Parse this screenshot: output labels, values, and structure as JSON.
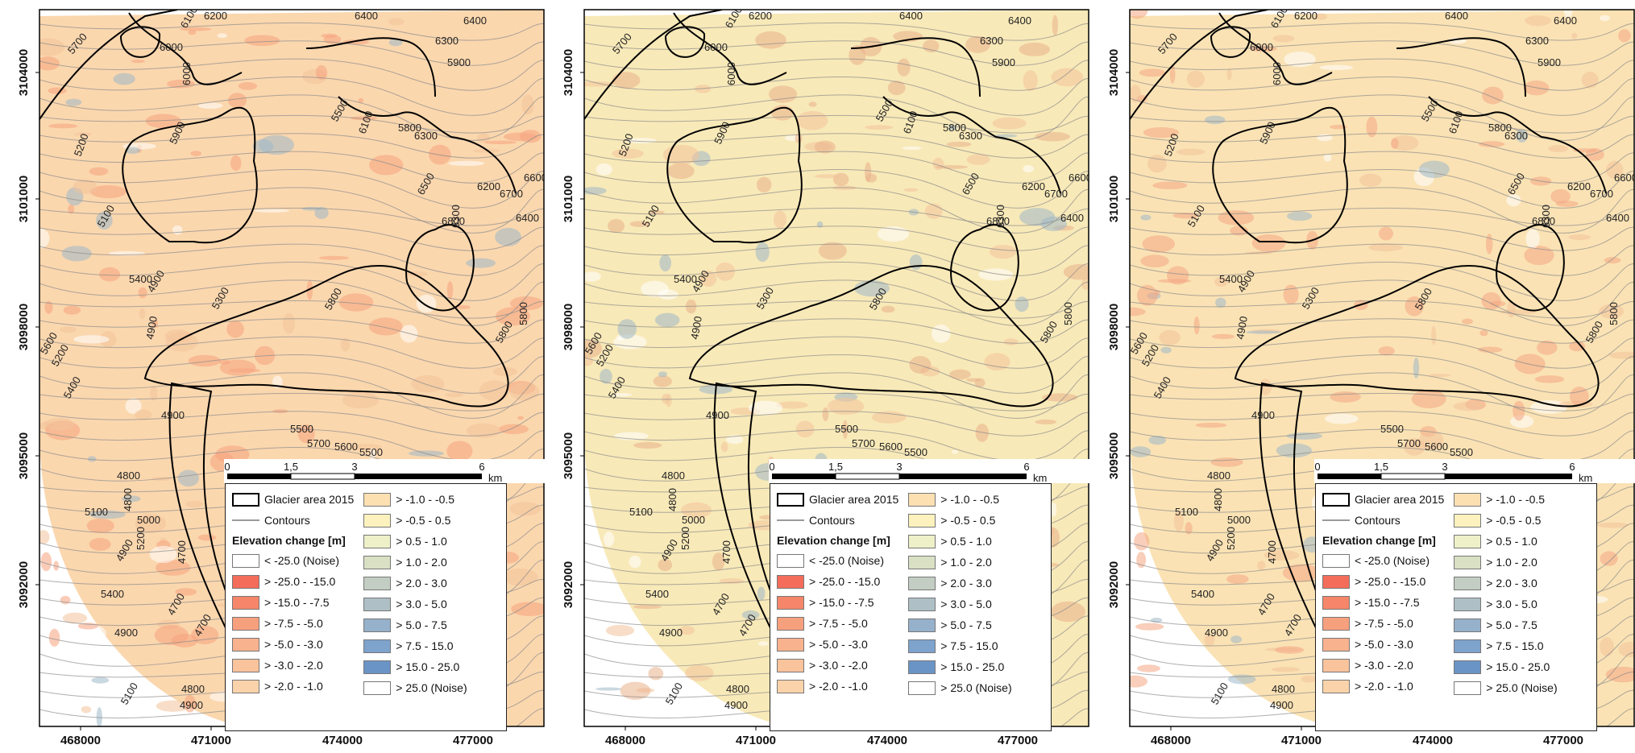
{
  "x_ticks": [
    "468000",
    "471000",
    "474000",
    "477000"
  ],
  "y_ticks": [
    "3104000",
    "3101000",
    "3098000",
    "3095000",
    "3092000"
  ],
  "scale_bar": {
    "labels": [
      "0",
      "1,5",
      "3",
      "6"
    ],
    "unit": "km"
  },
  "contour_labels": [
    "6100",
    "6200",
    "6400",
    "6400",
    "6300",
    "5900",
    "6000",
    "5700",
    "5500",
    "6000",
    "5900",
    "5200",
    "6100",
    "6300",
    "5800",
    "6600",
    "6500",
    "6200",
    "6700",
    "6600",
    "5100",
    "6800",
    "6400",
    "6300",
    "5400",
    "4900",
    "5800",
    "5900",
    "5800",
    "5300",
    "4900",
    "5600",
    "5800",
    "5200",
    "5400",
    "5500",
    "4900",
    "5700",
    "5600",
    "5500",
    "4800",
    "5400",
    "4800",
    "5100",
    "5000",
    "5200",
    "4900",
    "4700",
    "5400",
    "4900",
    "4700",
    "4700",
    "5100",
    "4800",
    "4900"
  ],
  "legend": {
    "glacier_label": "Glacier area 2015",
    "contours_label": "Contours",
    "title": "Elevation change [m]",
    "classes_left": [
      {
        "label": "< -25.0 (Noise)",
        "color": "#ffffff"
      },
      {
        "label": "> -25.0 - -15.0",
        "color": "#f46d5a"
      },
      {
        "label": "> -15.0 - -7.5",
        "color": "#f5866a"
      },
      {
        "label": "> -7.5 - -5.0",
        "color": "#f7a07e"
      },
      {
        "label": "> -5.0 - -3.0",
        "color": "#f8b28e"
      },
      {
        "label": "> -3.0 - -2.0",
        "color": "#f9c39c"
      },
      {
        "label": "> -2.0 - -1.0",
        "color": "#fbd3aa"
      }
    ],
    "classes_right": [
      {
        "label": "> -1.0 - -0.5",
        "color": "#fce0b2"
      },
      {
        "label": "> -0.5 - 0.5",
        "color": "#fdf2bd"
      },
      {
        "label": "> 0.5 - 1.0",
        "color": "#eef0c8"
      },
      {
        "label": "> 1.0 - 2.0",
        "color": "#d9e0c4"
      },
      {
        "label": "> 2.0 - 3.0",
        "color": "#c3cdc3"
      },
      {
        "label": "> 3.0 - 5.0",
        "color": "#aebfc6"
      },
      {
        "label": "> 5.0 - 7.5",
        "color": "#96b1cb"
      },
      {
        "label": "> 7.5 - 15.0",
        "color": "#7ea3cc"
      },
      {
        "label": "> 15.0 - 25.0",
        "color": "#6a94c6"
      },
      {
        "label": "> 25.0 (Noise)",
        "color": "#ffffff"
      }
    ]
  },
  "panels": [
    {
      "name": "panel-1",
      "base": "#fbd7ae",
      "accent": "#f5a27e"
    },
    {
      "name": "panel-2",
      "base": "#f8e9b8",
      "accent": "#e9b08a"
    },
    {
      "name": "panel-3",
      "base": "#fae2b4",
      "accent": "#f4a683"
    }
  ]
}
